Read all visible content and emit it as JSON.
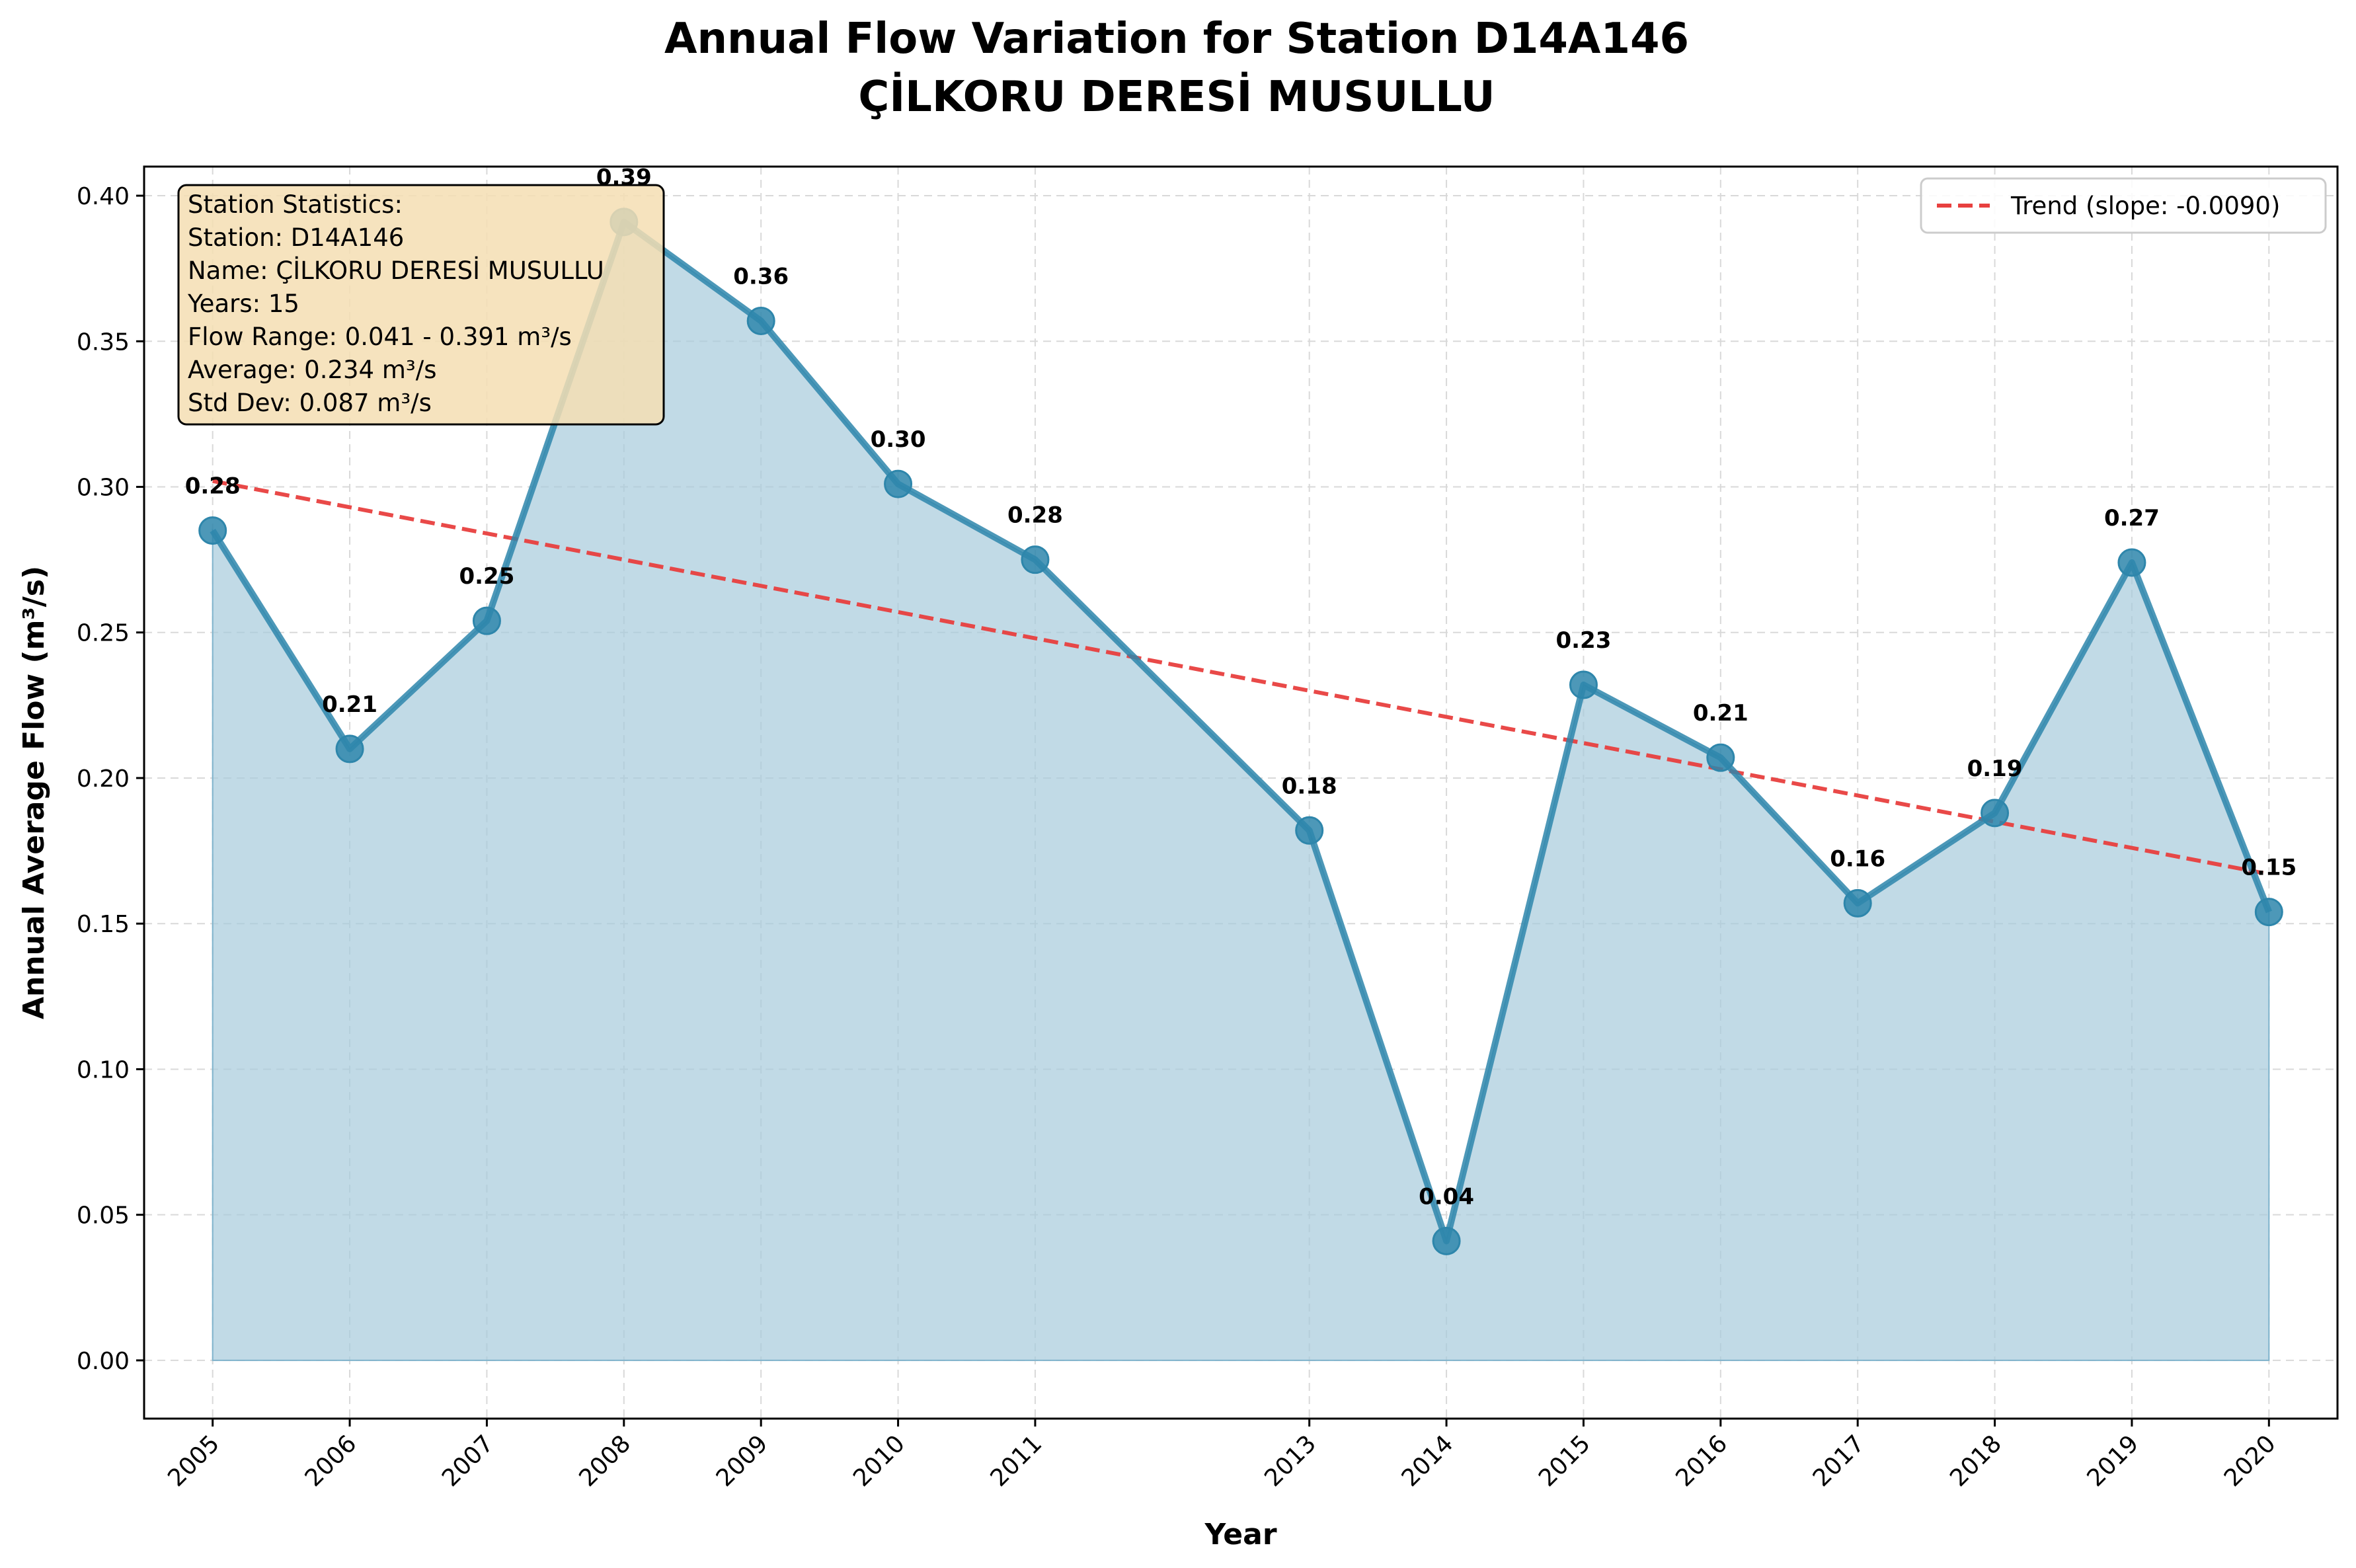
{
  "chart_data": {
    "type": "line",
    "title_line1": "Annual Flow Variation for Station D14A146",
    "title_line2": "ÇİLKORU DERESİ MUSULLU",
    "xlabel": "Year",
    "ylabel": "Annual Average Flow (m³/s)",
    "ylim": [
      -0.02,
      0.41
    ],
    "yticks": [
      "0.00",
      "0.05",
      "0.10",
      "0.15",
      "0.20",
      "0.25",
      "0.30",
      "0.35",
      "0.40"
    ],
    "ytick_values": [
      0,
      0.05,
      0.1,
      0.15,
      0.2,
      0.25,
      0.3,
      0.35,
      0.4
    ],
    "xlim": [
      2004.5,
      2020.5
    ],
    "grid": true,
    "series": [
      {
        "x": [
          2005,
          2006,
          2007,
          2008,
          2009,
          2010,
          2011,
          2013,
          2014,
          2015,
          2016,
          2017,
          2018,
          2019,
          2020
        ],
        "values": [
          0.285,
          0.21,
          0.254,
          0.391,
          0.357,
          0.301,
          0.275,
          0.182,
          0.041,
          0.232,
          0.207,
          0.157,
          0.188,
          0.274,
          0.154
        ],
        "labels": [
          "0.28",
          "0.21",
          "0.25",
          "0.39",
          "0.36",
          "0.30",
          "0.28",
          "0.18",
          "0.04",
          "0.23",
          "0.21",
          "0.16",
          "0.19",
          "0.27",
          "0.15"
        ],
        "color": "#2e86ab",
        "fill": "#a6cadb"
      }
    ],
    "trend": {
      "name": "Trend (slope: -0.0090)",
      "x": [
        2005,
        2020
      ],
      "values": [
        0.302,
        0.167
      ],
      "color": "#e8403f",
      "dashed": true
    },
    "legend_position": "top-right",
    "stats_box": {
      "lines": [
        "Station Statistics:",
        "Station: D14A146",
        "Name: ÇİLKORU DERESİ MUSULLU",
        "Years: 15",
        "Flow Range: 0.041 - 0.391 m³/s",
        "Average: 0.234 m³/s",
        "Std Dev: 0.087 m³/s"
      ],
      "background": "#f5deb3",
      "position": "top-left"
    }
  }
}
